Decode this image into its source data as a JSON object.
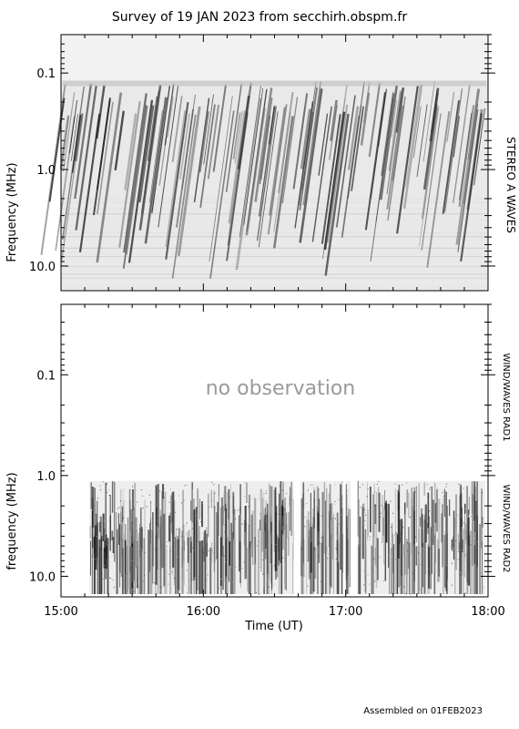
{
  "title": "Survey of 19 JAN 2023 from secchirh.obspm.fr",
  "footer": "Assembled on 01FEB2023",
  "chart_data": [
    {
      "type": "heatmap",
      "panel": "top",
      "instrument_label": "STEREO A WAVES",
      "ylabel": "Frequency (MHz)",
      "y_scale": "log",
      "y_inverted": true,
      "ylim_mhz": [
        0.04,
        18
      ],
      "y_tick_labels": [
        "0.1",
        "1.0",
        "10.0"
      ],
      "y_tick_values": [
        0.1,
        1.0,
        10.0
      ],
      "x_range": [
        "15:00",
        "18:00"
      ],
      "colormap": "grayscale (dark = high intensity)",
      "data_gap_above_mhz": 0.12,
      "annotation": ""
    },
    {
      "type": "heatmap",
      "panel": "bottom",
      "instrument_labels": [
        "WIND/WAVES RAD1",
        "WIND/WAVES RAD2"
      ],
      "ylabel": "frequency (MHz)",
      "y_scale": "log",
      "y_inverted": true,
      "ylim_mhz": [
        0.02,
        16
      ],
      "y_tick_labels": [
        "0.1",
        "1.0",
        "10.0"
      ],
      "y_tick_values": [
        0.1,
        1.0,
        10.0
      ],
      "xlabel": "Time (UT)",
      "x_tick_labels": [
        "15:00",
        "16:00",
        "17:00",
        "18:00"
      ],
      "x_tick_values": [
        0,
        60,
        120,
        180
      ],
      "colormap": "grayscale (dark = high intensity)",
      "annotation": "no observation",
      "rad2_data_start": "15:12",
      "rad2_gaps_minutes": [
        [
          98,
          101
        ],
        [
          119,
          120
        ],
        [
          122,
          125
        ]
      ]
    }
  ]
}
